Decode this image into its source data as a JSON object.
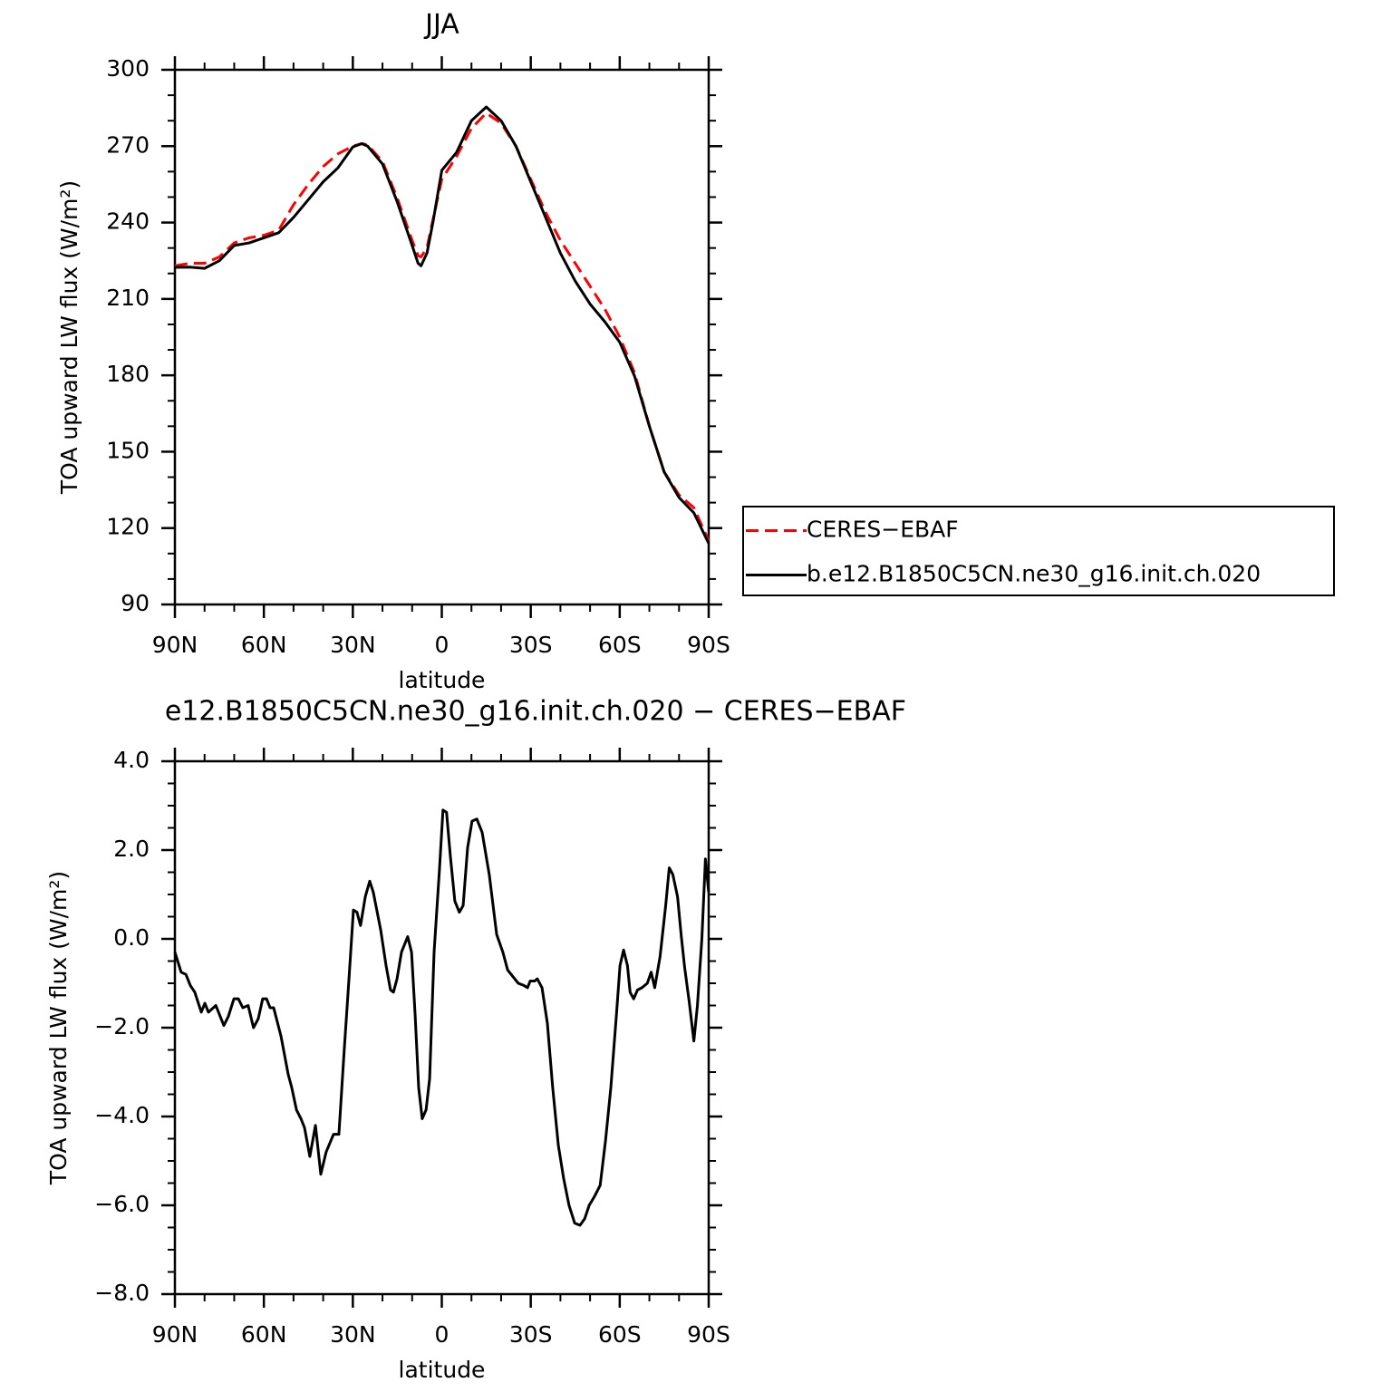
{
  "chart_data": [
    {
      "type": "line",
      "title": "JJA",
      "xlabel": "latitude",
      "ylabel": "TOA upward LW flux (W/m²)",
      "x": [
        90,
        85,
        80,
        75,
        70,
        65,
        60,
        55,
        50,
        45,
        40,
        35,
        30,
        27,
        25,
        20,
        15,
        10,
        8,
        7,
        5,
        3,
        0,
        -5,
        -10,
        -15,
        -20,
        -25,
        -30,
        -35,
        -40,
        -45,
        -50,
        -55,
        -60,
        -65,
        -70,
        -75,
        -80,
        -85,
        -90
      ],
      "series": [
        {
          "name": "CERES−EBAF",
          "color": "#ff0000",
          "line_style": "dashed",
          "values": [
            223,
            224,
            224,
            226.5,
            232,
            234,
            235,
            237,
            247,
            255,
            262,
            267,
            270,
            271,
            270.5,
            264,
            249.5,
            233,
            227,
            226.5,
            230,
            241,
            257,
            266,
            277,
            283,
            279,
            270,
            257,
            244,
            233,
            224,
            215,
            206,
            195,
            181,
            160,
            142,
            133,
            128,
            115
          ]
        },
        {
          "name": "b.e12.B1850C5CN.ne30_g16.init.ch.020",
          "color": "#000000",
          "line_style": "solid",
          "values": [
            222.4,
            222.5,
            222,
            225,
            231,
            232,
            234,
            236,
            242,
            249,
            256,
            261.5,
            269.7,
            271,
            270,
            263,
            248,
            231,
            224,
            223,
            228,
            240,
            260.5,
            267.6,
            280,
            285.4,
            280,
            270,
            256,
            242,
            228,
            217,
            208,
            201,
            193,
            179.7,
            160,
            142,
            132,
            126,
            114
          ]
        }
      ],
      "xlim": [
        90,
        -90
      ],
      "xticks": [
        {
          "value": 90,
          "label": "90N"
        },
        {
          "value": 60,
          "label": "60N"
        },
        {
          "value": 30,
          "label": "30N"
        },
        0,
        {
          "value": -30,
          "label": "30S"
        },
        {
          "value": -60,
          "label": "60S"
        },
        {
          "value": -90,
          "label": "90S"
        }
      ],
      "ylim": [
        90,
        300
      ],
      "yticks": [
        90,
        120,
        150,
        180,
        210,
        240,
        270,
        300
      ],
      "legend": "right"
    },
    {
      "type": "line",
      "title": "e12.B1850C5CN.ne30_g16.init.ch.020 − CERES−EBAF",
      "xlabel": "latitude",
      "ylabel": "TOA upward LW flux (W/m²)",
      "x": [
        90,
        87.9,
        86.3,
        84.8,
        83.3,
        81.1,
        79.9,
        78.7,
        76.2,
        73.5,
        72.0,
        70.1,
        68.6,
        67.1,
        65.3,
        63.5,
        61.9,
        60.4,
        59.1,
        57.9,
        56.7,
        54.2,
        51.8,
        50.6,
        49.0,
        47.5,
        46.3,
        44.5,
        42.6,
        40.8,
        39.0,
        36.5,
        34.7,
        32.9,
        31.3,
        29.8,
        28.6,
        27.4,
        25.8,
        24.3,
        23.1,
        20.6,
        18.8,
        17.3,
        16.3,
        15.1,
        13.6,
        11.5,
        10.2,
        9.0,
        7.8,
        6.6,
        5.3,
        4.1,
        2.6,
        0.8,
        -0.4,
        -1.6,
        -2.9,
        -4.4,
        -5.9,
        -7.2,
        -8.7,
        -10.2,
        -11.8,
        -13.6,
        -16.0,
        -18.5,
        -20.6,
        -22.2,
        -24.0,
        -25.8,
        -27.7,
        -28.9,
        -29.8,
        -31.3,
        -32.2,
        -33.8,
        -35.6,
        -37.4,
        -39.3,
        -41.1,
        -42.9,
        -44.8,
        -46.6,
        -48.2,
        -49.7,
        -51.5,
        -53.4,
        -55.2,
        -57.0,
        -58.9,
        -60.1,
        -61.3,
        -62.6,
        -63.5,
        -64.7,
        -66.0,
        -67.5,
        -69.3,
        -70.6,
        -71.8,
        -73.6,
        -75.5,
        -76.7,
        -77.9,
        -79.5,
        -80.7,
        -81.9,
        -83.4,
        -85.0,
        -86.2,
        -87.7,
        -88.9,
        -90
      ],
      "series": [
        {
          "color": "#000000",
          "line_style": "solid",
          "values": [
            -0.3,
            -0.75,
            -0.8,
            -1.05,
            -1.2,
            -1.65,
            -1.45,
            -1.65,
            -1.5,
            -1.95,
            -1.75,
            -1.35,
            -1.35,
            -1.55,
            -1.5,
            -2.0,
            -1.8,
            -1.35,
            -1.35,
            -1.55,
            -1.55,
            -2.2,
            -3.05,
            -3.35,
            -3.85,
            -4.05,
            -4.25,
            -4.9,
            -4.2,
            -5.3,
            -4.8,
            -4.4,
            -4.4,
            -2.5,
            -0.9,
            0.65,
            0.6,
            0.3,
            0.95,
            1.3,
            1.05,
            0.2,
            -0.6,
            -1.15,
            -1.2,
            -0.9,
            -0.3,
            0.05,
            -0.3,
            -1.7,
            -3.35,
            -4.05,
            -3.85,
            -3.15,
            -0.3,
            1.55,
            2.9,
            2.85,
            1.85,
            0.85,
            0.6,
            0.75,
            2.05,
            2.65,
            2.7,
            2.4,
            1.45,
            0.1,
            -0.3,
            -0.7,
            -0.85,
            -1.0,
            -1.05,
            -1.1,
            -0.95,
            -0.95,
            -0.9,
            -1.1,
            -1.9,
            -3.35,
            -4.65,
            -5.4,
            -6.0,
            -6.4,
            -6.45,
            -6.3,
            -6.0,
            -5.8,
            -5.55,
            -4.55,
            -3.35,
            -1.7,
            -0.6,
            -0.25,
            -0.6,
            -1.2,
            -1.35,
            -1.15,
            -1.1,
            -1.0,
            -0.75,
            -1.1,
            -0.4,
            0.75,
            1.6,
            1.45,
            0.95,
            0.1,
            -0.65,
            -1.4,
            -2.3,
            -1.5,
            0.0,
            1.8,
            1.05
          ]
        }
      ],
      "xlim": [
        90,
        -90
      ],
      "xticks": [
        {
          "value": 90,
          "label": "90N"
        },
        {
          "value": 60,
          "label": "60N"
        },
        {
          "value": 30,
          "label": "30N"
        },
        0,
        {
          "value": -30,
          "label": "30S"
        },
        {
          "value": -60,
          "label": "60S"
        },
        {
          "value": -90,
          "label": "90S"
        }
      ],
      "ylim": [
        -8,
        4
      ],
      "yticks": [
        {
          "value": -8,
          "label": "−8.0"
        },
        {
          "value": -6,
          "label": "−6.0"
        },
        {
          "value": -4,
          "label": "−4.0"
        },
        {
          "value": -2,
          "label": "−2.0"
        },
        {
          "value": 0,
          "label": "0.0"
        },
        {
          "value": 2,
          "label": "2.0"
        },
        {
          "value": 4,
          "label": "4.0"
        }
      ]
    }
  ]
}
